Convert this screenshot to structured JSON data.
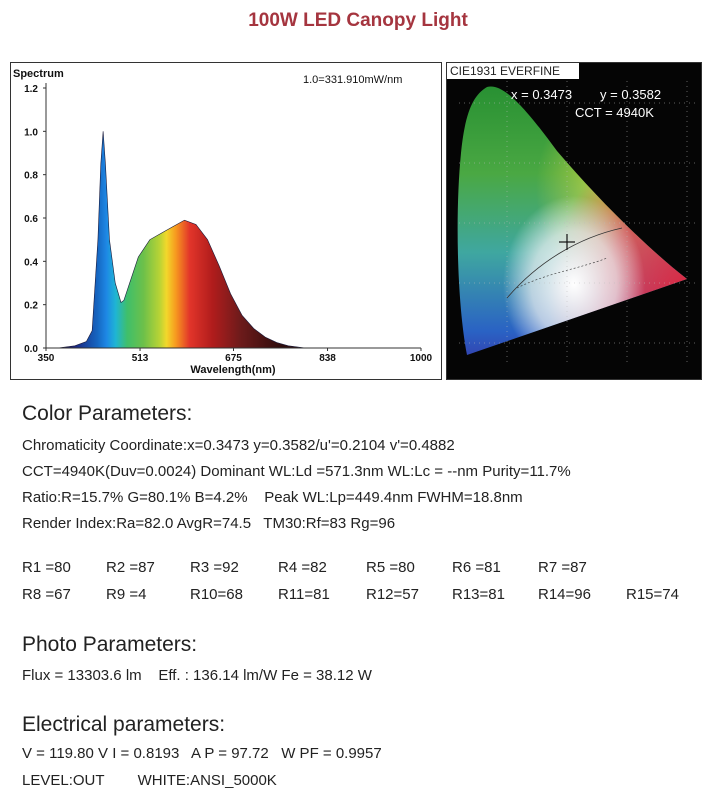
{
  "title": "100W LED Canopy Light",
  "chart_data": {
    "type": "area",
    "title": "Spectrum",
    "note": "1.0=331.910mW/nm",
    "x_label": "Wavelength(nm)",
    "x": [
      370,
      400,
      420,
      430,
      440,
      445,
      449,
      453,
      460,
      470,
      480,
      485,
      495,
      510,
      530,
      550,
      570,
      590,
      610,
      630,
      650,
      670,
      690,
      710,
      730,
      750,
      770,
      800
    ],
    "values": [
      0,
      0.01,
      0.03,
      0.08,
      0.5,
      0.85,
      1.0,
      0.85,
      0.5,
      0.3,
      0.21,
      0.22,
      0.3,
      0.42,
      0.5,
      0.53,
      0.56,
      0.59,
      0.57,
      0.5,
      0.38,
      0.25,
      0.15,
      0.09,
      0.05,
      0.025,
      0.01,
      0
    ],
    "xlim": [
      350,
      1000
    ],
    "ylim": [
      0,
      1.2
    ],
    "xticks": [
      350,
      513,
      675,
      838,
      1000
    ],
    "yticks": [
      {
        "value": 0,
        "label": "0.0"
      },
      0.2,
      0.4,
      0.6,
      0.8,
      {
        "value": 1,
        "label": "1.0"
      },
      1.2
    ]
  },
  "cie": {
    "header": "CIE1931 EVERFINE",
    "x": "x = 0.3473",
    "y": "y = 0.3582",
    "cct": "CCT = 4940K"
  },
  "color_parameters": {
    "heading": "Color Parameters:",
    "lines": [
      "Chromaticity Coordinate:x=0.3473 y=0.3582/u'=0.2104 v'=0.4882",
      "CCT=4940K(Duv=0.0024) Dominant WL:Ld =571.3nm WL:Lc = --nm Purity=11.7%",
      "Ratio:R=15.7% G=80.1% B=4.2%    Peak WL:Lp=449.4nm FWHM=18.8nm",
      "Render Index:Ra=82.0 AvgR=74.5   TM30:Rf=83 Rg=96"
    ],
    "render_indices": [
      [
        "R1 =80",
        "R2 =87",
        "R3 =92",
        "R4 =82",
        "R5 =80",
        "R6 =81",
        "R7 =87"
      ],
      [
        "R8 =67",
        "R9 =4",
        "R10=68",
        "R11=81",
        "R12=57",
        "R13=81",
        "R14=96",
        "R15=74"
      ]
    ]
  },
  "photo_parameters": {
    "heading": "Photo Parameters:",
    "lines": [
      "Flux = 13303.6 lm    Eff. : 136.14 lm/W Fe = 38.12 W"
    ]
  },
  "electrical_parameters": {
    "heading": "Electrical parameters:",
    "lines": [
      "V = 119.80 V I = 0.8193   A P = 97.72   W PF = 0.9957",
      "LEVEL:OUT        WHITE:ANSI_5000K"
    ]
  }
}
